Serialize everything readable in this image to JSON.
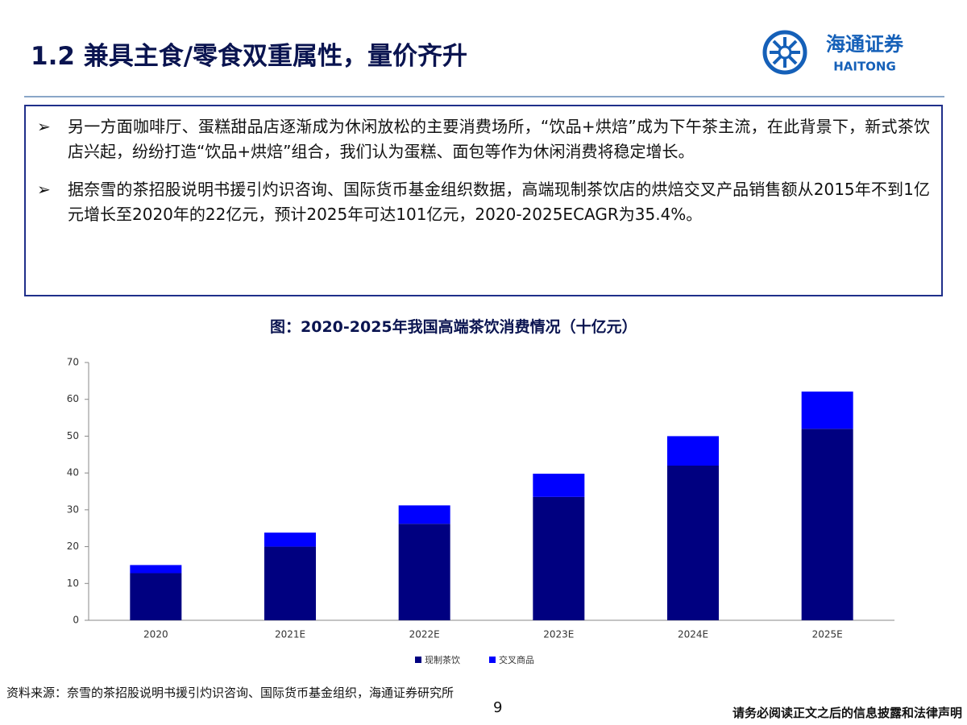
{
  "header": {
    "title": "1.2 兼具主食/零食双重属性，量价齐升",
    "logo_cn": "海通证券",
    "logo_en": "HAITONG"
  },
  "bullets": [
    "另一方面咖啡厅、蛋糕甜品店逐渐成为休闲放松的主要消费场所，“饮品+烘焙”成为下午茶主流，在此背景下，新式茶饮店兴起，纷纷打造“饮品+烘焙”组合，我们认为蛋糕、面包等作为休闲消费将稳定增长。",
    "据奈雪的茶招股说明书援引灼识咨询、国际货币基金组织数据，高端现制茶饮店的烘焙交叉产品销售额从2015年不到1亿元增长至2020年的22亿元，预计2025年可达101亿元，2020-2025ECAGR为35.4%。"
  ],
  "chart_data": {
    "type": "bar",
    "stacked": true,
    "title": "图：2020-2025年我国高端茶饮消费情况（十亿元）",
    "categories": [
      "2020",
      "2021E",
      "2022E",
      "2023E",
      "2024E",
      "2025E"
    ],
    "series": [
      {
        "name": "现制茶饮",
        "color": "#000080",
        "values": [
          12.8,
          20,
          26.2,
          33.5,
          42,
          52
        ]
      },
      {
        "name": "交叉商品",
        "color": "#0000ff",
        "values": [
          2.2,
          3.8,
          5,
          6.3,
          8,
          10.1
        ]
      }
    ],
    "ylim": [
      0,
      70
    ],
    "yticks": [
      0,
      10,
      20,
      30,
      40,
      50,
      60,
      70
    ],
    "legend": "bottom"
  },
  "footer": {
    "source": "资料来源：奈雪的茶招股说明书援引灼识咨询、国际货币基金组织，海通证券研究所",
    "page": "9",
    "disclaimer": "请务必阅读正文之后的信息披露和法律声明"
  }
}
